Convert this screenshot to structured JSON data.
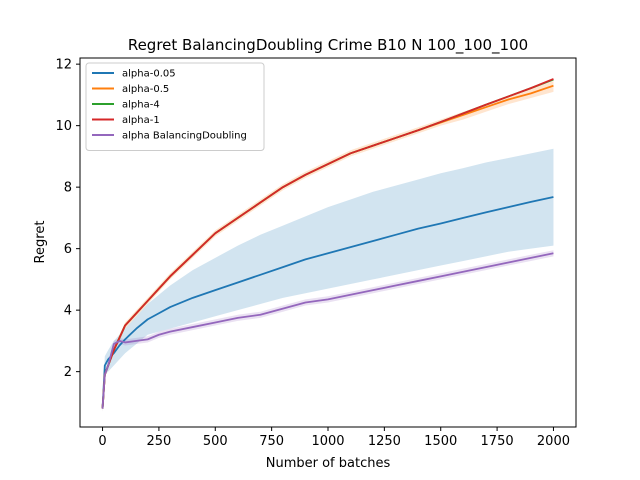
{
  "chart_data": {
    "type": "line",
    "title": "Regret BalancingDoubling Crime B10 N 100_100_100",
    "xlabel": "Number of batches",
    "ylabel": "Regret",
    "xlim": [
      -100,
      2100
    ],
    "ylim": [
      0.2,
      12.2
    ],
    "xticks": [
      0,
      250,
      500,
      750,
      1000,
      1250,
      1500,
      1750,
      2000
    ],
    "yticks": [
      2,
      4,
      6,
      8,
      10,
      12
    ],
    "grid": false,
    "legend_position": "top-left",
    "x": [
      0,
      10,
      25,
      50,
      75,
      100,
      150,
      200,
      250,
      300,
      400,
      500,
      600,
      700,
      800,
      900,
      1000,
      1100,
      1200,
      1300,
      1400,
      1500,
      1600,
      1700,
      1800,
      1900,
      2000
    ],
    "series": [
      {
        "name": "alpha-0.05",
        "color": "#1f77b4",
        "values": [
          0.8,
          2.2,
          2.4,
          2.6,
          2.85,
          3.05,
          3.4,
          3.7,
          3.9,
          4.1,
          4.4,
          4.65,
          4.9,
          5.15,
          5.4,
          5.65,
          5.85,
          6.05,
          6.25,
          6.45,
          6.65,
          6.82,
          7.0,
          7.18,
          7.35,
          7.52,
          7.68
        ],
        "band_low": [
          0.7,
          1.9,
          2.0,
          2.2,
          2.4,
          2.6,
          2.9,
          3.2,
          3.3,
          3.4,
          3.6,
          3.8,
          4.0,
          4.2,
          4.4,
          4.55,
          4.7,
          4.85,
          5.0,
          5.15,
          5.3,
          5.45,
          5.6,
          5.75,
          5.9,
          6.0,
          6.1
        ],
        "band_high": [
          0.9,
          2.5,
          2.7,
          3.0,
          3.2,
          3.4,
          3.8,
          4.2,
          4.5,
          4.8,
          5.3,
          5.7,
          6.1,
          6.45,
          6.75,
          7.05,
          7.35,
          7.6,
          7.85,
          8.05,
          8.25,
          8.45,
          8.62,
          8.8,
          8.95,
          9.1,
          9.25
        ]
      },
      {
        "name": "alpha-0.5",
        "color": "#ff7f0e",
        "values": [
          0.8,
          1.9,
          2.2,
          2.7,
          3.1,
          3.5,
          3.9,
          4.3,
          4.7,
          5.1,
          5.8,
          6.5,
          7.0,
          7.5,
          8.0,
          8.4,
          8.75,
          9.1,
          9.35,
          9.6,
          9.85,
          10.1,
          10.35,
          10.6,
          10.85,
          11.05,
          11.3
        ],
        "band_low": [
          0.7,
          1.8,
          2.1,
          2.6,
          3.0,
          3.4,
          3.8,
          4.2,
          4.6,
          5.0,
          5.7,
          6.4,
          6.9,
          7.4,
          7.9,
          8.3,
          8.65,
          9.0,
          9.25,
          9.5,
          9.75,
          10.0,
          10.2,
          10.45,
          10.7,
          10.9,
          11.1
        ],
        "band_high": [
          0.9,
          2.0,
          2.3,
          2.8,
          3.2,
          3.6,
          4.0,
          4.4,
          4.8,
          5.2,
          5.9,
          6.6,
          7.1,
          7.6,
          8.1,
          8.5,
          8.85,
          9.2,
          9.45,
          9.7,
          9.95,
          10.2,
          10.45,
          10.7,
          10.95,
          11.2,
          11.45
        ]
      },
      {
        "name": "alpha-4",
        "color": "#2ca02c",
        "values": [
          0.8,
          1.9,
          2.2,
          2.7,
          3.1,
          3.5,
          3.9,
          4.3,
          4.7,
          5.1,
          5.8,
          6.5,
          7.0,
          7.5,
          8.0,
          8.4,
          8.75,
          9.1,
          9.35,
          9.6,
          9.85,
          10.12,
          10.4,
          10.68,
          10.95,
          11.22,
          11.5
        ]
      },
      {
        "name": "alpha-1",
        "color": "#d62728",
        "values": [
          0.8,
          1.9,
          2.2,
          2.7,
          3.1,
          3.5,
          3.9,
          4.3,
          4.7,
          5.1,
          5.8,
          6.5,
          7.0,
          7.5,
          8.0,
          8.4,
          8.75,
          9.1,
          9.35,
          9.6,
          9.85,
          10.12,
          10.4,
          10.68,
          10.95,
          11.22,
          11.52
        ]
      },
      {
        "name": "alpha BalancingDoubling",
        "color": "#9467bd",
        "values": [
          0.8,
          1.9,
          2.2,
          2.9,
          3.0,
          2.95,
          3.0,
          3.05,
          3.2,
          3.3,
          3.45,
          3.6,
          3.75,
          3.85,
          4.05,
          4.25,
          4.35,
          4.5,
          4.65,
          4.8,
          4.95,
          5.1,
          5.25,
          5.4,
          5.55,
          5.7,
          5.85
        ],
        "band_low": [
          0.7,
          1.8,
          2.1,
          2.8,
          2.9,
          2.85,
          2.9,
          2.95,
          3.1,
          3.2,
          3.35,
          3.5,
          3.65,
          3.75,
          3.95,
          4.15,
          4.25,
          4.4,
          4.55,
          4.7,
          4.85,
          5.0,
          5.15,
          5.3,
          5.45,
          5.6,
          5.75
        ],
        "band_high": [
          0.9,
          2.0,
          2.3,
          3.0,
          3.1,
          3.05,
          3.1,
          3.15,
          3.3,
          3.4,
          3.55,
          3.7,
          3.85,
          3.95,
          4.15,
          4.35,
          4.45,
          4.6,
          4.75,
          4.9,
          5.05,
          5.2,
          5.35,
          5.5,
          5.65,
          5.8,
          5.95
        ]
      }
    ]
  }
}
